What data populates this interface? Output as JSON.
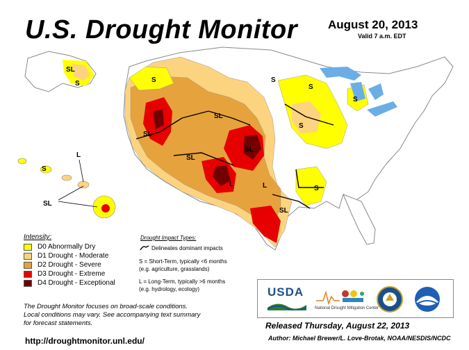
{
  "title": "U.S. Drought Monitor",
  "date": "August 20, 2013",
  "valid": "Valid 7 a.m. EDT",
  "colors": {
    "D0": "#ffff00",
    "D1": "#fcd37f",
    "D2": "#e6a23c",
    "D3": "#e60000",
    "D4": "#730000",
    "water": "#6baee6",
    "land": "#ffffff",
    "border": "#888888"
  },
  "legend": {
    "title": "Intensity:",
    "items": [
      {
        "label": "D0 Abnormally Dry",
        "color": "#ffff00"
      },
      {
        "label": "D1 Drought - Moderate",
        "color": "#fcd37f"
      },
      {
        "label": "D2 Drought - Severe",
        "color": "#e6a23c"
      },
      {
        "label": "D3 Drought - Extreme",
        "color": "#e60000"
      },
      {
        "label": "D4 Drought - Exceptional",
        "color": "#730000"
      }
    ]
  },
  "impact": {
    "title": "Drought Impact Types:",
    "line1": "Delineates dominant impacts",
    "short_1": "S = Short-Term, typically <6 months",
    "short_2": "(e.g. agriculture, grasslands)",
    "long_1": "L = Long-Term, typically >6 months",
    "long_2": "(e.g. hydrology, ecology)"
  },
  "map_labels": {
    "S": "S",
    "L": "L",
    "SL": "SL"
  },
  "disclaimer": {
    "line1": "The Drought Monitor focuses on broad-scale conditions.",
    "line2": "Local conditions may vary. See accompanying text summary",
    "line3": "for forecast statements."
  },
  "logos": {
    "usda": "USDA",
    "ndmc": "National Drought Mitigation Center"
  },
  "released": "Released Thursday, August 22, 2013",
  "author": "Author: Michael Brewer/L. Love-Brotak, NOAA/NESDIS/NCDC",
  "url": "http://droughtmonitor.unl.edu/"
}
